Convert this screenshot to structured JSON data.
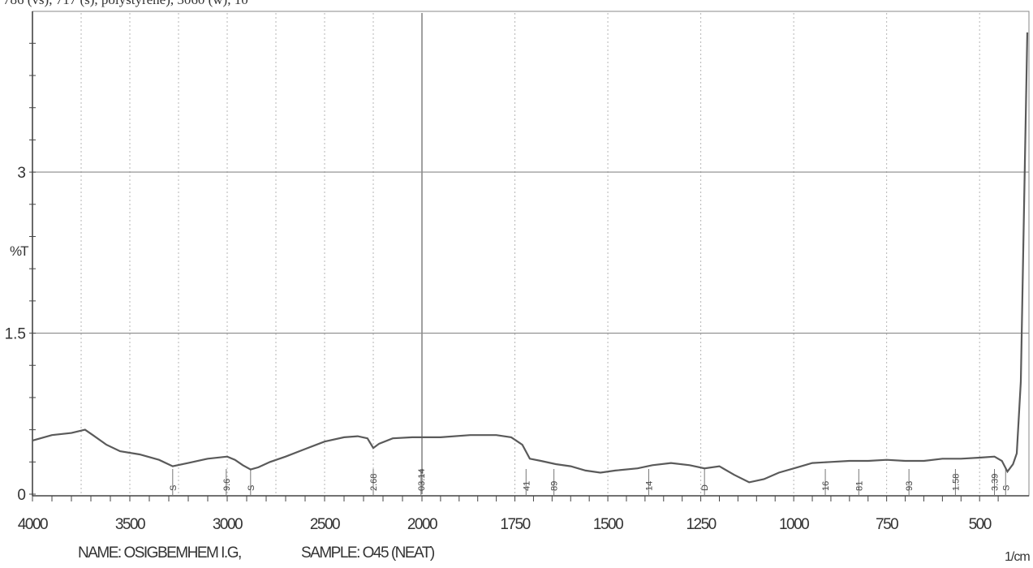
{
  "top_text": "786 (vs), 717 (s), polystyrene), 3060 (w), 10",
  "footer": {
    "name": "NAME: OSIGBEMHEM I.G,",
    "sample": "SAMPLE: O45 (NEAT)",
    "unit": "1/cm"
  },
  "colors": {
    "trace": "#5a5a5a",
    "grid": "#8a8a8a",
    "axis": "#444444"
  },
  "chart_data": {
    "type": "line",
    "title": "",
    "xlabel": "1/cm",
    "ylabel": "%T",
    "xlim": [
      4000,
      400
    ],
    "ylim": [
      0,
      4.5
    ],
    "x_ticks": [
      4000,
      3500,
      3000,
      2500,
      2000,
      1750,
      1500,
      1250,
      1000,
      750,
      500
    ],
    "y_ticks": [
      0,
      1.5,
      3
    ],
    "grid": true,
    "series": [
      {
        "values": [
          [
            4000,
            0.5
          ],
          [
            3900,
            0.55
          ],
          [
            3800,
            0.57
          ],
          [
            3730,
            0.6
          ],
          [
            3690,
            0.55
          ],
          [
            3620,
            0.46
          ],
          [
            3550,
            0.4
          ],
          [
            3450,
            0.37
          ],
          [
            3350,
            0.32
          ],
          [
            3280,
            0.26
          ],
          [
            3200,
            0.29
          ],
          [
            3100,
            0.33
          ],
          [
            3000,
            0.35
          ],
          [
            2960,
            0.32
          ],
          [
            2920,
            0.27
          ],
          [
            2880,
            0.23
          ],
          [
            2840,
            0.25
          ],
          [
            2780,
            0.3
          ],
          [
            2700,
            0.35
          ],
          [
            2600,
            0.42
          ],
          [
            2500,
            0.49
          ],
          [
            2400,
            0.53
          ],
          [
            2330,
            0.54
          ],
          [
            2280,
            0.52
          ],
          [
            2250,
            0.43
          ],
          [
            2220,
            0.47
          ],
          [
            2150,
            0.52
          ],
          [
            2050,
            0.53
          ],
          [
            1950,
            0.53
          ],
          [
            1870,
            0.55
          ],
          [
            1800,
            0.55
          ],
          [
            1760,
            0.53
          ],
          [
            1730,
            0.46
          ],
          [
            1710,
            0.33
          ],
          [
            1680,
            0.31
          ],
          [
            1640,
            0.28
          ],
          [
            1600,
            0.26
          ],
          [
            1560,
            0.22
          ],
          [
            1520,
            0.2
          ],
          [
            1480,
            0.22
          ],
          [
            1420,
            0.24
          ],
          [
            1380,
            0.27
          ],
          [
            1330,
            0.29
          ],
          [
            1280,
            0.27
          ],
          [
            1240,
            0.24
          ],
          [
            1200,
            0.26
          ],
          [
            1160,
            0.18
          ],
          [
            1120,
            0.11
          ],
          [
            1080,
            0.14
          ],
          [
            1040,
            0.2
          ],
          [
            990,
            0.25
          ],
          [
            950,
            0.29
          ],
          [
            900,
            0.3
          ],
          [
            850,
            0.31
          ],
          [
            800,
            0.31
          ],
          [
            750,
            0.32
          ],
          [
            700,
            0.31
          ],
          [
            650,
            0.31
          ],
          [
            600,
            0.33
          ],
          [
            550,
            0.33
          ],
          [
            500,
            0.34
          ],
          [
            460,
            0.35
          ],
          [
            440,
            0.31
          ],
          [
            425,
            0.21
          ],
          [
            410,
            0.28
          ],
          [
            400,
            0.38
          ]
        ]
      }
    ],
    "peak_labels": [
      {
        "x": 3280,
        "text": "S"
      },
      {
        "x": 3005,
        "text": "9.6"
      },
      {
        "x": 2880,
        "text": "S"
      },
      {
        "x": 2250,
        "text": "2.68"
      },
      {
        "x": 2005,
        "text": "03.14"
      },
      {
        "x": 1720,
        "text": "41"
      },
      {
        "x": 1645,
        "text": "89"
      },
      {
        "x": 1390,
        "text": "14"
      },
      {
        "x": 1240,
        "text": "D"
      },
      {
        "x": 915,
        "text": "16"
      },
      {
        "x": 825,
        "text": "81"
      },
      {
        "x": 690,
        "text": "93"
      },
      {
        "x": 565,
        "text": "1.58"
      },
      {
        "x": 460,
        "text": "3.39"
      },
      {
        "x": 430,
        "text": "S"
      }
    ]
  }
}
